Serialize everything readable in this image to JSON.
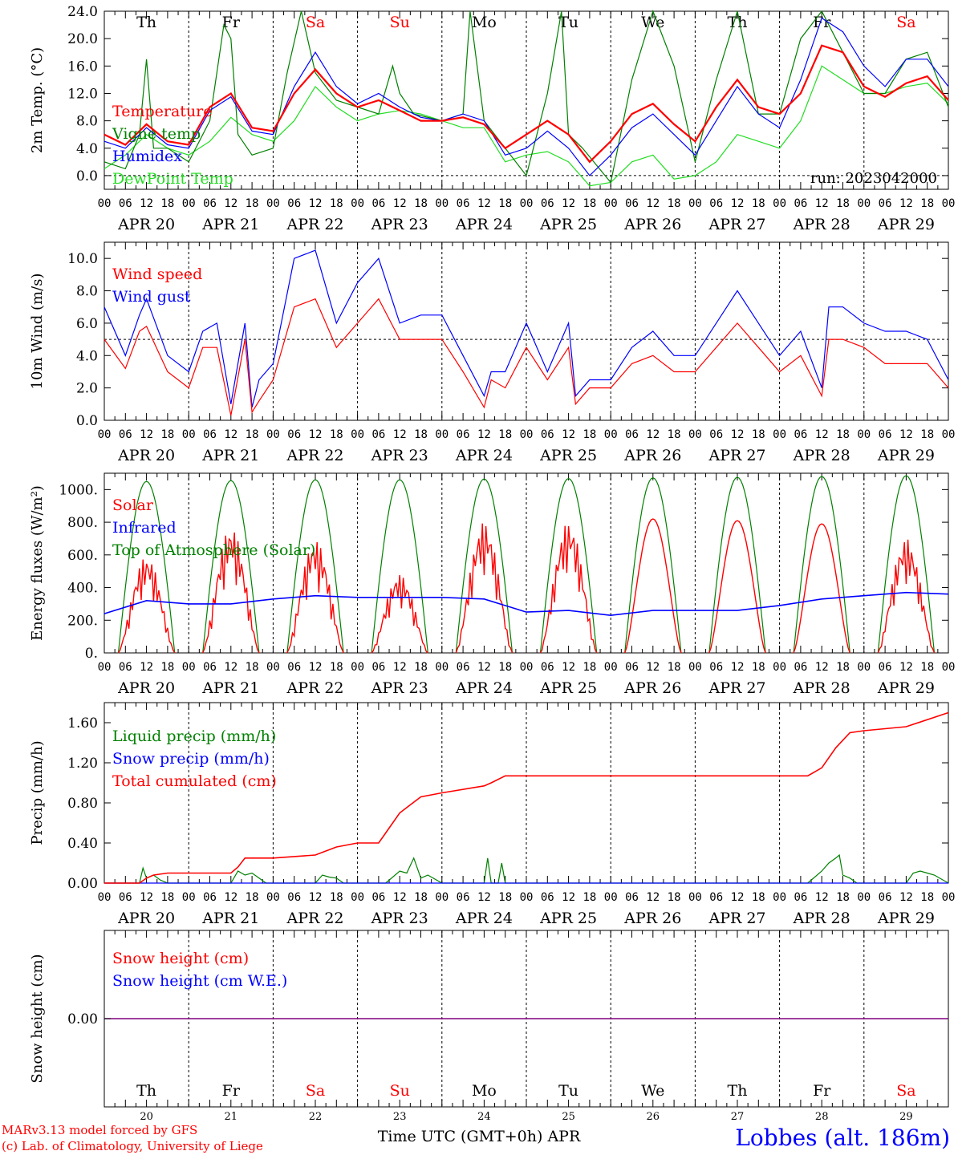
{
  "colors": {
    "red": "#ff0000",
    "dark_green": "#008000",
    "blue": "#0000ff",
    "light_green": "#22dd22",
    "purple": "#800080",
    "black": "#000000"
  },
  "days": [
    "Th",
    "Fr",
    "Sa",
    "Su",
    "Mo",
    "Tu",
    "We",
    "Th",
    "Fr",
    "Sa"
  ],
  "weekend_days": [
    2,
    3,
    9
  ],
  "dates": [
    "APR 20",
    "APR 21",
    "APR 22",
    "APR 23",
    "APR 24",
    "APR 25",
    "APR 26",
    "APR 27",
    "APR 28",
    "APR 29"
  ],
  "hour_ticks": [
    "00",
    "06",
    "12",
    "18"
  ],
  "bottom_dates": [
    "20",
    "21",
    "22",
    "23",
    "24",
    "25",
    "26",
    "27",
    "28",
    "29"
  ],
  "xlabel": "Time UTC (GMT+0h) APR",
  "footer": {
    "credit_1": "MARv3.13 model forced by GFS",
    "credit_2": "(c) Lab. of Climatology, University of Liege",
    "station": "Lobbes (alt. 186m)"
  },
  "chart_data": [
    {
      "type": "line",
      "ylabel": "2m Temp. (°C)",
      "ylim": [
        -2,
        24
      ],
      "yticks": [
        "0.0",
        "4.0",
        "8.0",
        "12.0",
        "16.0",
        "20.0",
        "24.0"
      ],
      "dashed_at": 0,
      "annotation": "run: 2023042000",
      "x_unit": "hours since Apr 20 00 UTC",
      "series": [
        {
          "name": "Temperature",
          "color": "red",
          "x": [
            0,
            6,
            12,
            18,
            24,
            30,
            36,
            42,
            48,
            54,
            60,
            66,
            72,
            78,
            84,
            90,
            96,
            102,
            108,
            114,
            120,
            126,
            132,
            138,
            144,
            150,
            156,
            162,
            168,
            174,
            180,
            186,
            192,
            198,
            204,
            210,
            216,
            222,
            228,
            234,
            240
          ],
          "y": [
            6,
            4.5,
            7.5,
            5,
            4.5,
            10,
            12,
            7,
            6.5,
            12,
            15.5,
            12,
            10,
            11,
            9.5,
            8,
            8,
            8.5,
            7.5,
            4,
            6,
            8,
            6,
            2,
            5,
            9,
            10.5,
            7.5,
            5,
            10,
            14,
            10,
            9,
            12,
            19,
            18,
            13,
            11.5,
            13.5,
            14.5,
            11
          ]
        },
        {
          "name": "Vigne temp",
          "color": "dark_green",
          "x": [
            0,
            6,
            10,
            12,
            14,
            18,
            24,
            30,
            34,
            36,
            38,
            42,
            48,
            52,
            56,
            60,
            66,
            72,
            78,
            82,
            84,
            88,
            96,
            102,
            104,
            108,
            114,
            120,
            126,
            130,
            132,
            136,
            144,
            150,
            156,
            162,
            168,
            174,
            180,
            186,
            192,
            198,
            204,
            210,
            216,
            222,
            228,
            234,
            240
          ],
          "y": [
            2,
            1,
            6,
            17,
            4,
            4,
            2,
            8,
            22,
            20,
            6,
            3,
            4,
            15,
            24,
            15,
            11,
            10,
            9,
            16,
            12,
            9,
            8,
            9,
            24,
            8,
            4,
            0,
            12,
            24,
            6,
            4,
            -1,
            14,
            24,
            16,
            2,
            14,
            24,
            9,
            9,
            20,
            24,
            18,
            12,
            12,
            17,
            18,
            10
          ]
        },
        {
          "name": "Humidex",
          "color": "blue",
          "x": [
            0,
            6,
            12,
            18,
            24,
            30,
            36,
            42,
            48,
            54,
            60,
            66,
            72,
            78,
            84,
            90,
            96,
            102,
            108,
            114,
            120,
            126,
            132,
            138,
            144,
            150,
            156,
            162,
            168,
            174,
            180,
            186,
            192,
            198,
            204,
            210,
            216,
            222,
            228,
            234,
            240
          ],
          "y": [
            5,
            4,
            7,
            4.5,
            4,
            9.5,
            11.5,
            6.5,
            6,
            13,
            18,
            13,
            10.5,
            12,
            10,
            8.5,
            8,
            9,
            8,
            3,
            4,
            6.5,
            4,
            0,
            3,
            7,
            9,
            6,
            3,
            8,
            13,
            9,
            7,
            14,
            23,
            21,
            16,
            13,
            17,
            17,
            13
          ]
        },
        {
          "name": "DewPoint Temp",
          "color": "light_green",
          "x": [
            0,
            6,
            12,
            18,
            24,
            30,
            36,
            42,
            48,
            54,
            60,
            66,
            72,
            78,
            84,
            90,
            96,
            102,
            108,
            114,
            120,
            126,
            132,
            138,
            144,
            150,
            156,
            162,
            168,
            174,
            180,
            186,
            192,
            198,
            204,
            210,
            216,
            222,
            228,
            234,
            240
          ],
          "y": [
            1,
            3,
            6,
            4,
            3,
            5,
            8.5,
            6,
            5,
            8,
            13,
            10,
            8,
            9,
            9.5,
            9,
            8,
            7,
            7,
            2,
            3,
            3.5,
            2,
            -1.5,
            -1,
            2,
            3,
            -0.5,
            0,
            2,
            6,
            5,
            4,
            8,
            16,
            14,
            12,
            12,
            13,
            13.5,
            10.5
          ]
        }
      ]
    },
    {
      "type": "line",
      "ylabel": "10m Wind (m/s)",
      "ylim": [
        0,
        11
      ],
      "yticks": [
        "0.0",
        "2.0",
        "4.0",
        "6.0",
        "8.0",
        "10.0"
      ],
      "dashed_at": 5,
      "x_unit": "hours since Apr 20 00 UTC",
      "series": [
        {
          "name": "Wind speed",
          "color": "red",
          "x": [
            0,
            6,
            10,
            12,
            18,
            24,
            28,
            32,
            36,
            40,
            42,
            44,
            48,
            54,
            60,
            66,
            72,
            78,
            84,
            90,
            96,
            102,
            108,
            110,
            114,
            120,
            126,
            132,
            134,
            138,
            144,
            150,
            156,
            162,
            168,
            174,
            180,
            186,
            192,
            198,
            204,
            206,
            210,
            216,
            222,
            228,
            234,
            240
          ],
          "y": [
            5,
            3.2,
            5.5,
            5.8,
            3,
            2,
            4.5,
            4.5,
            0.3,
            5,
            0.5,
            1.2,
            2.5,
            7,
            7.5,
            4.5,
            6,
            7.5,
            5,
            5,
            5,
            3,
            0.8,
            2.5,
            2,
            4.5,
            2.5,
            4.5,
            1,
            2,
            2,
            3.5,
            4,
            3,
            3,
            4.5,
            6,
            4.5,
            3,
            4,
            1.5,
            5,
            5,
            4.5,
            3.5,
            3.5,
            3.5,
            2
          ]
        },
        {
          "name": "Wind gust",
          "color": "blue",
          "x": [
            0,
            6,
            10,
            12,
            18,
            24,
            28,
            32,
            36,
            40,
            42,
            44,
            48,
            54,
            60,
            66,
            72,
            78,
            84,
            90,
            96,
            102,
            108,
            110,
            114,
            120,
            126,
            132,
            134,
            138,
            144,
            150,
            156,
            162,
            168,
            174,
            180,
            186,
            192,
            198,
            204,
            206,
            210,
            216,
            222,
            228,
            234,
            240
          ],
          "y": [
            7,
            4,
            6.5,
            7.5,
            4,
            3,
            5.5,
            6,
            1,
            6,
            0.8,
            2.5,
            3.5,
            10,
            10.5,
            6,
            8.5,
            10,
            6,
            6.5,
            6.5,
            4,
            1.5,
            3,
            3,
            6,
            3,
            6,
            1.5,
            2.5,
            2.5,
            4.5,
            5.5,
            4,
            4,
            6,
            8,
            6,
            4,
            5.5,
            2,
            7,
            7,
            6,
            5.5,
            5.5,
            5,
            2.5
          ]
        }
      ]
    },
    {
      "type": "line",
      "ylabel": "Energy fluxes (W/m²)",
      "ylim": [
        0,
        1100
      ],
      "yticks": [
        "0.",
        "200.",
        "400.",
        "600.",
        "800.",
        "1000."
      ],
      "x_unit": "hours since Apr 20 00 UTC",
      "series": [
        {
          "name": "Solar",
          "color": "red",
          "peaks": [
            590,
            770,
            690,
            480,
            800,
            800,
            820,
            810,
            790,
            700
          ]
        },
        {
          "name": "Infrared",
          "color": "blue",
          "x": [
            0,
            12,
            24,
            36,
            48,
            60,
            72,
            84,
            96,
            108,
            120,
            132,
            144,
            156,
            168,
            180,
            192,
            204,
            216,
            228,
            240
          ],
          "y": [
            240,
            320,
            300,
            300,
            330,
            350,
            340,
            340,
            340,
            330,
            250,
            260,
            230,
            260,
            260,
            260,
            290,
            330,
            350,
            370,
            360
          ]
        },
        {
          "name": "Top of Atmosphere (Solar)",
          "color": "dark_green",
          "peaks": [
            1050,
            1055,
            1060,
            1060,
            1065,
            1068,
            1072,
            1075,
            1080,
            1085
          ]
        }
      ]
    },
    {
      "type": "line",
      "ylabel": "Precip (mm/h)",
      "ylim": [
        0,
        1.8
      ],
      "yticks": [
        "0.00",
        "0.40",
        "0.80",
        "1.20",
        "1.60"
      ],
      "x_unit": "hours since Apr 20 00 UTC",
      "series": [
        {
          "name": "Liquid precip (mm/h)",
          "color": "dark_green",
          "x": [
            0,
            10,
            11,
            12,
            14,
            16,
            18,
            36,
            38,
            40,
            42,
            44,
            46,
            60,
            62,
            64,
            66,
            68,
            80,
            84,
            86,
            88,
            90,
            92,
            96,
            108,
            109,
            110,
            112,
            113,
            114,
            200,
            204,
            206,
            208,
            209,
            210,
            212,
            214,
            228,
            230,
            232,
            234,
            236,
            240
          ],
          "y": [
            0,
            0,
            0.15,
            0.05,
            0.08,
            0.03,
            0,
            0,
            0.12,
            0.08,
            0.1,
            0.05,
            0,
            0,
            0.08,
            0.06,
            0.05,
            0,
            0,
            0.12,
            0.1,
            0.25,
            0.05,
            0.08,
            0,
            0,
            0.25,
            0,
            0,
            0.2,
            0,
            0,
            0.12,
            0.2,
            0.25,
            0.28,
            0.08,
            0.05,
            0,
            0,
            0.1,
            0.12,
            0.1,
            0.08,
            0
          ]
        },
        {
          "name": "Snow precip (mm/h)",
          "color": "blue",
          "x": [
            0,
            240
          ],
          "y": [
            0,
            0
          ]
        },
        {
          "name": "Total cumulated (cm)",
          "color": "red",
          "x": [
            0,
            10,
            12,
            14,
            18,
            36,
            38,
            40,
            48,
            60,
            66,
            72,
            78,
            80,
            84,
            90,
            96,
            108,
            110,
            114,
            120,
            200,
            204,
            208,
            212,
            216,
            228,
            240
          ],
          "y": [
            0,
            0,
            0.05,
            0.08,
            0.1,
            0.1,
            0.16,
            0.25,
            0.25,
            0.28,
            0.36,
            0.4,
            0.4,
            0.5,
            0.7,
            0.86,
            0.9,
            0.97,
            1.0,
            1.07,
            1.07,
            1.07,
            1.15,
            1.35,
            1.5,
            1.52,
            1.56,
            1.7
          ]
        }
      ]
    },
    {
      "type": "line",
      "ylabel": "Snow height (cm)",
      "yticks": [
        "0.00"
      ],
      "x_unit": "hours since Apr 20 00 UTC",
      "series": [
        {
          "name": "Snow height (cm)",
          "color": "red",
          "x": [
            0,
            240
          ],
          "y": [
            0,
            0
          ]
        },
        {
          "name": "Snow height (cm W.E.)",
          "color": "blue",
          "x": [
            0,
            240
          ],
          "y": [
            0,
            0
          ]
        }
      ]
    }
  ]
}
